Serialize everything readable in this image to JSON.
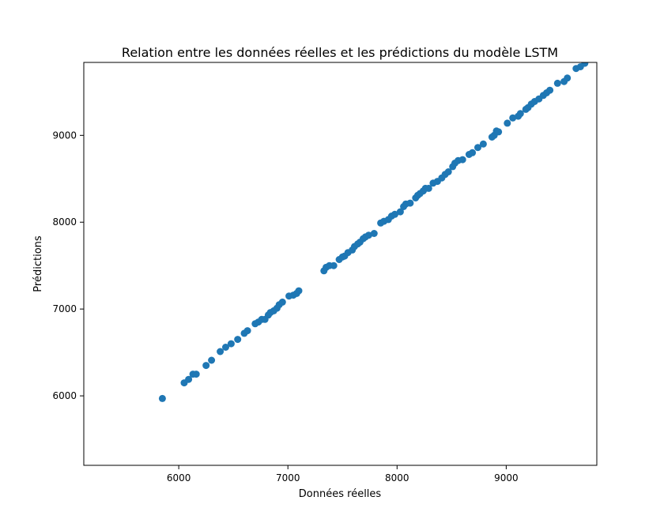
{
  "chart_data": {
    "type": "scatter",
    "title": "Relation entre les données réelles et les prédictions du modèle LSTM",
    "xlabel": "Données réelles",
    "ylabel": "Prédictions",
    "xlim": [
      5130,
      9830
    ],
    "ylim": [
      5200,
      9840
    ],
    "x_ticks": [
      "6000",
      "7000",
      "8000",
      "9000"
    ],
    "y_ticks": [
      "6000",
      "7000",
      "8000",
      "9000"
    ],
    "grid": false,
    "legend": "none",
    "marker_color": "#1f77b4",
    "series": [
      {
        "points": [
          [
            5850,
            5970
          ],
          [
            6050,
            6150
          ],
          [
            6090,
            6190
          ],
          [
            6130,
            6250
          ],
          [
            6160,
            6250
          ],
          [
            6250,
            6350
          ],
          [
            6300,
            6410
          ],
          [
            6380,
            6510
          ],
          [
            6430,
            6560
          ],
          [
            6480,
            6600
          ],
          [
            6540,
            6650
          ],
          [
            6600,
            6720
          ],
          [
            6630,
            6750
          ],
          [
            6700,
            6830
          ],
          [
            6730,
            6850
          ],
          [
            6760,
            6880
          ],
          [
            6790,
            6880
          ],
          [
            6820,
            6930
          ],
          [
            6840,
            6960
          ],
          [
            6870,
            6980
          ],
          [
            6900,
            7010
          ],
          [
            6920,
            7050
          ],
          [
            6950,
            7080
          ],
          [
            7010,
            7150
          ],
          [
            7050,
            7160
          ],
          [
            7080,
            7180
          ],
          [
            7100,
            7210
          ],
          [
            7330,
            7440
          ],
          [
            7350,
            7480
          ],
          [
            7380,
            7500
          ],
          [
            7420,
            7500
          ],
          [
            7470,
            7570
          ],
          [
            7500,
            7600
          ],
          [
            7520,
            7610
          ],
          [
            7550,
            7650
          ],
          [
            7590,
            7680
          ],
          [
            7610,
            7720
          ],
          [
            7640,
            7750
          ],
          [
            7660,
            7770
          ],
          [
            7690,
            7810
          ],
          [
            7710,
            7830
          ],
          [
            7740,
            7850
          ],
          [
            7790,
            7870
          ],
          [
            7850,
            7990
          ],
          [
            7880,
            8010
          ],
          [
            7920,
            8030
          ],
          [
            7950,
            8070
          ],
          [
            7980,
            8090
          ],
          [
            8030,
            8120
          ],
          [
            8060,
            8180
          ],
          [
            8080,
            8210
          ],
          [
            8120,
            8220
          ],
          [
            8170,
            8280
          ],
          [
            8190,
            8310
          ],
          [
            8210,
            8330
          ],
          [
            8240,
            8360
          ],
          [
            8260,
            8390
          ],
          [
            8290,
            8390
          ],
          [
            8330,
            8450
          ],
          [
            8370,
            8470
          ],
          [
            8410,
            8510
          ],
          [
            8440,
            8550
          ],
          [
            8470,
            8580
          ],
          [
            8510,
            8640
          ],
          [
            8530,
            8680
          ],
          [
            8560,
            8710
          ],
          [
            8600,
            8720
          ],
          [
            8660,
            8780
          ],
          [
            8690,
            8800
          ],
          [
            8740,
            8860
          ],
          [
            8790,
            8900
          ],
          [
            8870,
            8980
          ],
          [
            8890,
            9000
          ],
          [
            8910,
            9050
          ],
          [
            8930,
            9040
          ],
          [
            9010,
            9140
          ],
          [
            9060,
            9200
          ],
          [
            9110,
            9220
          ],
          [
            9130,
            9250
          ],
          [
            9180,
            9300
          ],
          [
            9200,
            9320
          ],
          [
            9230,
            9360
          ],
          [
            9260,
            9390
          ],
          [
            9300,
            9420
          ],
          [
            9340,
            9460
          ],
          [
            9370,
            9490
          ],
          [
            9400,
            9520
          ],
          [
            9470,
            9600
          ],
          [
            9530,
            9620
          ],
          [
            9560,
            9660
          ],
          [
            9640,
            9770
          ],
          [
            9680,
            9790
          ],
          [
            9720,
            9830
          ]
        ]
      }
    ]
  }
}
